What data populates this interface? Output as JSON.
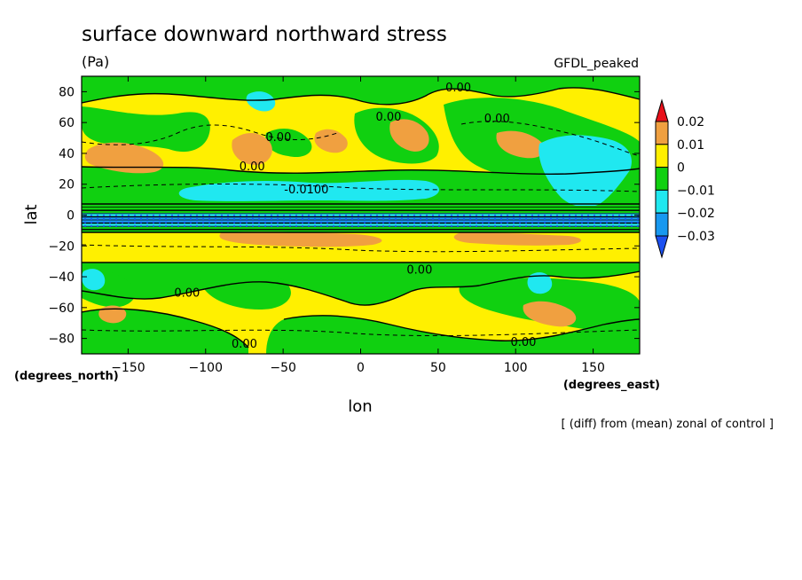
{
  "chart_data": {
    "type": "heatmap",
    "title": "surface downward northward stress",
    "units": "(Pa)",
    "model": "GFDL_peaked",
    "xlabel": "lon",
    "ylabel": "lat",
    "x_units": "(degrees_east)",
    "y_units": "(degrees_north)",
    "note": "[ (diff) from (mean) zonal of control ]",
    "xlim": [
      -180,
      180
    ],
    "ylim": [
      -90,
      90
    ],
    "x_ticks": [
      -150,
      -100,
      -50,
      0,
      50,
      100,
      150
    ],
    "y_ticks": [
      -80,
      -60,
      -40,
      -20,
      0,
      20,
      40,
      60,
      80
    ],
    "x_tick_labels": [
      "−150",
      "−100",
      "−50",
      "0",
      "50",
      "100",
      "150"
    ],
    "y_tick_labels": [
      "−80",
      "−60",
      "−40",
      "−20",
      "0",
      "20",
      "40",
      "60",
      "80"
    ],
    "colorbar": {
      "levels": [
        0.02,
        0.01,
        0,
        -0.01,
        -0.02,
        -0.03
      ],
      "labels": [
        "0.02",
        "0.01",
        "0",
        "−0.01",
        "−0.02",
        "−0.03"
      ],
      "colors": [
        "#e8101a",
        "#f0a040",
        "#fff000",
        "#10d010",
        "#20e8f0",
        "#1898f0",
        "#1c50f0"
      ]
    },
    "contour_labels": [
      {
        "text": "0.00",
        "lon": 63,
        "lat": 83
      },
      {
        "text": "0.00",
        "lon": 18,
        "lat": 64
      },
      {
        "text": "0.00",
        "lon": 88,
        "lat": 63
      },
      {
        "text": "0.00",
        "lon": -53,
        "lat": 51
      },
      {
        "text": "0.00",
        "lon": -70,
        "lat": 32
      },
      {
        "text": "-0.0100",
        "lon": -35,
        "lat": 17
      },
      {
        "text": "0.00",
        "lon": 38,
        "lat": -35
      },
      {
        "text": "0.00",
        "lon": -112,
        "lat": -50
      },
      {
        "text": "0.00",
        "lon": -75,
        "lat": -83
      },
      {
        "text": "0.00",
        "lon": 105,
        "lat": -82
      }
    ]
  }
}
